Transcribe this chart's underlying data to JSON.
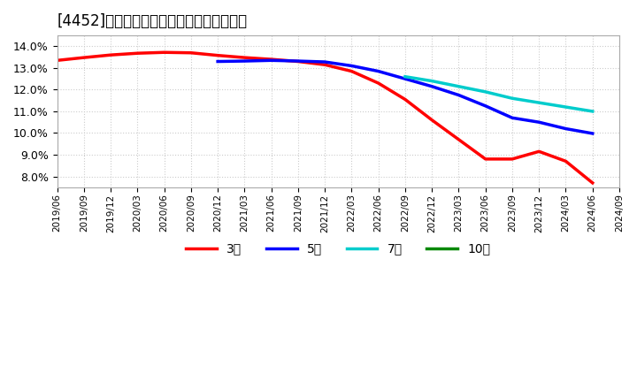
{
  "title": "[4452]　経常利益マージンの平均値の推移",
  "title_fontsize": 12,
  "ylim": [
    0.075,
    0.145
  ],
  "yticks": [
    0.08,
    0.09,
    0.1,
    0.11,
    0.12,
    0.13,
    0.14
  ],
  "background_color": "#ffffff",
  "grid_color": "#cccccc",
  "series": {
    "3年": {
      "color": "#ff0000",
      "points": [
        [
          "2019/06",
          0.1335
        ],
        [
          "2019/09",
          0.1348
        ],
        [
          "2019/12",
          0.136
        ],
        [
          "2020/03",
          0.1368
        ],
        [
          "2020/06",
          0.1372
        ],
        [
          "2020/09",
          0.137
        ],
        [
          "2020/12",
          0.1358
        ],
        [
          "2021/03",
          0.1348
        ],
        [
          "2021/06",
          0.134
        ],
        [
          "2021/09",
          0.133
        ],
        [
          "2021/12",
          0.1315
        ],
        [
          "2022/03",
          0.1285
        ],
        [
          "2022/06",
          0.123
        ],
        [
          "2022/09",
          0.1155
        ],
        [
          "2022/12",
          0.106
        ],
        [
          "2023/03",
          0.097
        ],
        [
          "2023/06",
          0.088
        ],
        [
          "2023/09",
          0.088
        ],
        [
          "2023/12",
          0.0915
        ],
        [
          "2024/03",
          0.087
        ],
        [
          "2024/06",
          0.077
        ]
      ]
    },
    "5年": {
      "color": "#0000ff",
      "points": [
        [
          "2020/12",
          0.133
        ],
        [
          "2021/03",
          0.1332
        ],
        [
          "2021/06",
          0.1335
        ],
        [
          "2021/09",
          0.1332
        ],
        [
          "2021/12",
          0.1328
        ],
        [
          "2022/03",
          0.131
        ],
        [
          "2022/06",
          0.1285
        ],
        [
          "2022/09",
          0.125
        ],
        [
          "2022/12",
          0.1215
        ],
        [
          "2023/03",
          0.1175
        ],
        [
          "2023/06",
          0.1125
        ],
        [
          "2023/09",
          0.107
        ],
        [
          "2023/12",
          0.105
        ],
        [
          "2024/03",
          0.102
        ],
        [
          "2024/06",
          0.0998
        ]
      ]
    },
    "7年": {
      "color": "#00cccc",
      "points": [
        [
          "2022/09",
          0.126
        ],
        [
          "2022/12",
          0.124
        ],
        [
          "2023/03",
          0.1215
        ],
        [
          "2023/06",
          0.119
        ],
        [
          "2023/09",
          0.116
        ],
        [
          "2023/12",
          0.114
        ],
        [
          "2024/03",
          0.112
        ],
        [
          "2024/06",
          0.11
        ]
      ]
    },
    "10年": {
      "color": "#008800",
      "points": []
    }
  },
  "xtick_labels": [
    "2019/06",
    "2019/09",
    "2019/12",
    "2020/03",
    "2020/06",
    "2020/09",
    "2020/12",
    "2021/03",
    "2021/06",
    "2021/09",
    "2021/12",
    "2022/03",
    "2022/06",
    "2022/09",
    "2022/12",
    "2023/03",
    "2023/06",
    "2023/09",
    "2023/12",
    "2024/03",
    "2024/06",
    "2024/09"
  ],
  "legend_labels": [
    "3年",
    "5年",
    "7年",
    "10年"
  ],
  "legend_colors": [
    "#ff0000",
    "#0000ff",
    "#00cccc",
    "#008800"
  ],
  "linewidth": 2.5
}
